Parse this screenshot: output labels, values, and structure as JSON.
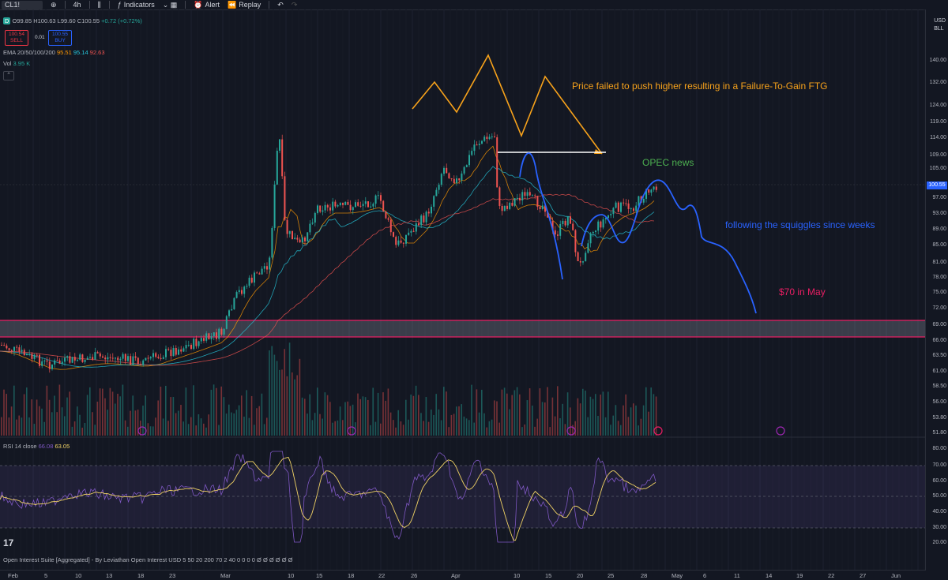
{
  "toolbar": {
    "symbol": "CL1!",
    "interval": "4h",
    "indicators_label": "Indicators",
    "alert_label": "Alert",
    "replay_label": "Replay"
  },
  "legend": {
    "badge": "D",
    "open": "O99.85",
    "high": "H100.63",
    "low": "L99.60",
    "close": "C100.55",
    "change": "+0.72 (+0.72%)",
    "sell_price": "100.54",
    "sell_label": "SELL",
    "buy_price": "100.55",
    "buy_label": "BUY",
    "spread": "0.01",
    "ema_label": "EMA 20/50/100/200",
    "ema_values": [
      "95.51",
      "95.14",
      "92.63"
    ],
    "vol_label": "Vol",
    "vol_value": "3.95 K",
    "rsi_label": "RSI 14 close",
    "rsi_values": [
      "66.08",
      "63.05"
    ],
    "footer": "Open Interest Suite [Aggregated] - By Leviathan Open Interest USD 5 50 20 200 70 2 40 0 0 0 0 Ø Ø Ø Ø Ø Ø"
  },
  "axis": {
    "currency": "USD",
    "unit": "BLL",
    "price_ticks": [
      "140.00",
      "132.00",
      "124.00",
      "119.00",
      "114.00",
      "109.00",
      "105.00",
      "97.00",
      "93.00",
      "89.00",
      "85.00",
      "81.00",
      "78.00",
      "75.00",
      "72.00",
      "69.00",
      "66.00",
      "63.50",
      "61.00",
      "58.50",
      "56.00",
      "53.80",
      "51.80"
    ],
    "last_price": "100.55",
    "rsi_ticks": [
      "80.00",
      "70.00",
      "60.00",
      "50.00",
      "40.00",
      "30.00",
      "20.00"
    ],
    "time_ticks": [
      "Feb",
      "5",
      "10",
      "13",
      "18",
      "23",
      "Mar",
      "10",
      "15",
      "18",
      "22",
      "26",
      "Apr",
      "10",
      "15",
      "20",
      "25",
      "28",
      "May",
      "6",
      "11",
      "14",
      "19",
      "22",
      "27",
      "Jun"
    ]
  },
  "annotations": {
    "ftg": "Price failed to push higher resulting in a Failure-To-Gain FTG",
    "opec": "OPEC news",
    "squiggles": "following the squiggles since weeks",
    "target": "$70 in May"
  },
  "colors": {
    "bg": "#131722",
    "up": "#26a69a",
    "down": "#ef5350",
    "orange": "#f7931a",
    "blue": "#2962ff",
    "green": "#4caf50",
    "pink": "#e91e63",
    "rsi_line": "#7e57c2",
    "rsi_ma": "#f0d264"
  }
}
